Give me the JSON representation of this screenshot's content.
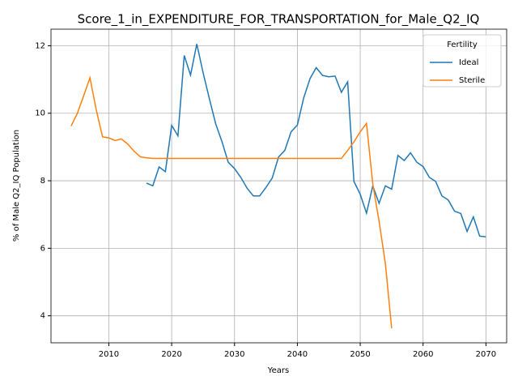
{
  "chart_data": {
    "type": "line",
    "title": "Score_1_in_EXPENDITURE_FOR_TRANSPORTATION_for_Male_Q2_IQ",
    "x_label": "Years",
    "y_label": "% of Male Q2_IQ Population",
    "legend_title": "Fertility",
    "legend_position": "upper right",
    "grid": true,
    "x": [
      2004,
      2005,
      2006,
      2007,
      2008,
      2009,
      2010,
      2011,
      2012,
      2013,
      2014,
      2015,
      2016,
      2017,
      2018,
      2019,
      2020,
      2021,
      2022,
      2023,
      2024,
      2025,
      2026,
      2027,
      2028,
      2029,
      2030,
      2031,
      2032,
      2033,
      2034,
      2035,
      2036,
      2037,
      2038,
      2039,
      2040,
      2041,
      2042,
      2043,
      2044,
      2045,
      2046,
      2047,
      2048,
      2049,
      2050,
      2051,
      2052,
      2053,
      2054,
      2055,
      2056,
      2057,
      2058,
      2059,
      2060,
      2061,
      2062,
      2063,
      2064,
      2065,
      2066,
      2067,
      2068,
      2069,
      2070
    ],
    "series": [
      {
        "name": "Ideal",
        "color": "#1f77b4",
        "values": [
          null,
          null,
          null,
          null,
          null,
          null,
          null,
          null,
          null,
          null,
          null,
          null,
          7.93,
          7.85,
          8.41,
          8.27,
          9.64,
          9.33,
          11.71,
          11.13,
          12.05,
          11.2,
          10.43,
          9.69,
          9.16,
          8.55,
          8.36,
          8.1,
          7.78,
          7.55,
          7.55,
          7.8,
          8.08,
          8.7,
          8.9,
          9.45,
          9.65,
          10.45,
          11.02,
          11.35,
          11.12,
          11.08,
          11.1,
          10.62,
          10.93,
          7.98,
          7.6,
          7.04,
          7.85,
          7.33,
          7.85,
          7.75,
          8.75,
          8.6,
          8.83,
          8.55,
          8.42,
          8.1,
          7.98,
          7.55,
          7.43,
          7.1,
          7.03,
          6.5,
          6.93,
          6.36,
          6.34
        ]
      },
      {
        "name": "Sterile",
        "color": "#ff7f0e",
        "values": [
          9.62,
          10.0,
          10.52,
          11.05,
          10.1,
          9.3,
          9.27,
          9.19,
          9.24,
          9.09,
          8.88,
          8.71,
          8.68,
          8.66,
          8.66,
          8.66,
          8.66,
          8.66,
          8.66,
          8.66,
          8.66,
          8.66,
          8.66,
          8.66,
          8.66,
          8.66,
          8.66,
          8.66,
          8.66,
          8.66,
          8.66,
          8.66,
          8.66,
          8.66,
          8.66,
          8.66,
          8.66,
          8.66,
          8.66,
          8.66,
          8.66,
          8.66,
          8.66,
          8.66,
          8.9,
          9.15,
          9.45,
          9.7,
          7.9,
          6.8,
          5.55,
          3.63,
          null,
          null,
          null,
          null,
          null,
          null,
          null,
          null,
          null,
          null,
          null,
          null,
          null,
          null,
          null
        ]
      }
    ],
    "xlim": [
      2000.8,
      2073.3
    ],
    "xticks": [
      2010,
      2020,
      2030,
      2040,
      2050,
      2060,
      2070
    ],
    "ylim": [
      3.2,
      12.49
    ],
    "yticks": [
      4,
      6,
      8,
      10,
      12
    ]
  }
}
